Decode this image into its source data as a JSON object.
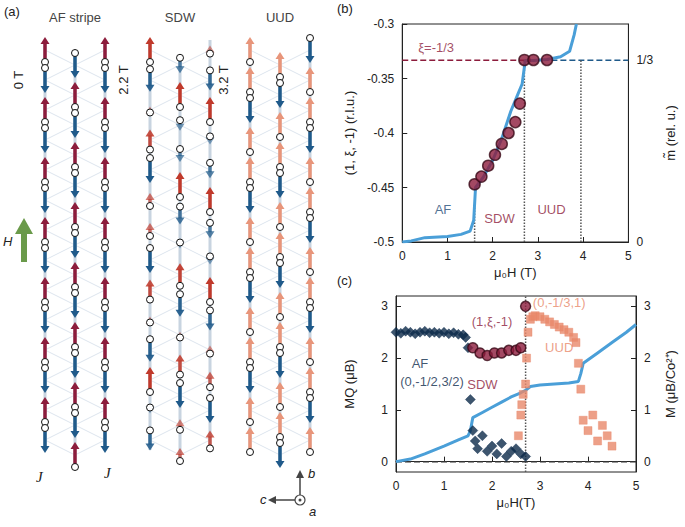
{
  "diagram": {
    "label": "(a)",
    "field": "H",
    "exchange": "J",
    "axes": {
      "up": "b",
      "left": "c",
      "out": "a"
    },
    "columns": [
      {
        "title": "AF stripe",
        "field": "0 T",
        "colors": {
          "up": "#8c1c3c",
          "down": "#1f5a8a"
        },
        "chains": [
          [
            1,
            -1,
            1,
            -1,
            1,
            -1,
            1,
            -1,
            1,
            -1,
            1,
            -1,
            1,
            -1
          ],
          [
            -1,
            1,
            -1,
            1,
            -1,
            1,
            -1,
            1,
            -1,
            1,
            -1,
            1,
            -1,
            1
          ],
          [
            1,
            -1,
            1,
            -1,
            1,
            -1,
            1,
            -1,
            1,
            -1,
            1,
            -1,
            1,
            -1
          ]
        ]
      },
      {
        "title": "SDW",
        "field": "2.2 T",
        "colors": {
          "up": "#c0392b",
          "down": "#1f5a8a"
        },
        "chains": [
          [
            1,
            -0.9,
            0.2,
            0.8,
            -1,
            0.5,
            0.5,
            -1,
            0.8,
            0.2,
            -0.9,
            1,
            -0.1,
            -0.8
          ],
          [
            -0.6,
            1,
            -0.4,
            -0.5,
            1,
            -0.7,
            -0.2,
            0.9,
            -0.9,
            0.1,
            0.8,
            -1,
            0.4,
            0.5
          ],
          [
            0.3,
            -0.8,
            1,
            -0.3,
            -0.6,
            1,
            -0.6,
            -0.3,
            1,
            -0.8,
            0.3,
            0.6,
            -1,
            0.7
          ]
        ]
      },
      {
        "title": "UUD",
        "field": "3.2 T",
        "colors": {
          "up": "#e8957a",
          "down": "#1f5a8a"
        },
        "chains": [
          [
            1,
            1,
            -1,
            1,
            1,
            -1,
            1,
            1,
            -1,
            1,
            1,
            -1,
            1,
            1
          ],
          [
            1,
            -1,
            1,
            1,
            -1,
            1,
            1,
            -1,
            1,
            1,
            -1,
            1,
            1,
            -1
          ],
          [
            -1,
            1,
            1,
            -1,
            1,
            1,
            -1,
            1,
            1,
            -1,
            1,
            1,
            -1,
            1
          ]
        ]
      }
    ]
  },
  "chart_data": [
    {
      "label": "(b)",
      "type": "scatter",
      "x_label": "μ₀H (T)",
      "y_label": "(1, ξ, -1) (r.l.u.)",
      "y2_label": "m̃ (rel. u.)",
      "xlim": [
        0,
        5
      ],
      "xticks": [
        0,
        1,
        2,
        3,
        4,
        5
      ],
      "ylim": [
        -0.5,
        -0.3
      ],
      "yticks": [
        -0.5,
        -0.45,
        -0.4,
        -0.35,
        -0.3
      ],
      "y2lim": [
        0,
        0.4
      ],
      "y2ticks": [
        0,
        {
          "value": 0.3333,
          "label": "1/3"
        }
      ],
      "grid": false,
      "series": [
        {
          "type": "line",
          "axis": "y2",
          "color": "#4a9fd8",
          "line_style": "solid",
          "x": [
            0,
            0.2,
            0.5,
            1.0,
            1.3,
            1.5,
            1.58,
            1.62,
            1.8,
            2.0,
            2.2,
            2.4,
            2.55,
            2.65,
            2.72,
            2.9,
            3.2,
            3.5,
            3.7,
            3.8,
            3.85
          ],
          "values": [
            0,
            0.002,
            0.008,
            0.01,
            0.014,
            0.02,
            0.04,
            0.1,
            0.12,
            0.15,
            0.19,
            0.24,
            0.27,
            0.29,
            0.333,
            0.333,
            0.335,
            0.34,
            0.35,
            0.38,
            0.4
          ]
        },
        {
          "type": "scatter",
          "marker": "circle",
          "color": "#8c1c3c",
          "x": [
            1.6,
            1.75,
            1.9,
            2.05,
            2.2,
            2.35,
            2.5,
            2.6,
            2.7,
            2.9,
            3.2
          ],
          "values": [
            -0.447,
            -0.44,
            -0.43,
            -0.42,
            -0.41,
            -0.4,
            -0.39,
            -0.373,
            -0.333,
            -0.333,
            -0.333
          ]
        }
      ],
      "reference_lines": [
        {
          "axis": "y",
          "value": -0.3333,
          "from": 0,
          "to": 2.7,
          "color": "#8c1c3c",
          "line_style": "dashed"
        },
        {
          "axis": "y",
          "value": -0.3333,
          "from": 2.7,
          "to": 5,
          "color": "#1f5a8a",
          "line_style": "dashed"
        },
        {
          "axis": "x",
          "value": 1.6,
          "from": -0.5,
          "to": -0.465,
          "color": "#555555",
          "line_style": "dotted"
        },
        {
          "axis": "x",
          "value": 2.7,
          "from": -0.5,
          "to": -0.3333,
          "color": "#555555",
          "line_style": "dotted"
        },
        {
          "axis": "x",
          "value": 3.95,
          "from": -0.5,
          "to": -0.3333,
          "color": "#555555",
          "line_style": "dotted"
        }
      ],
      "annotations": [
        {
          "text": "ξ=-1/3",
          "x": 0.75,
          "y": -0.322,
          "color": "#8c1c3c"
        },
        {
          "text": "AF",
          "x": 0.9,
          "y": -0.47,
          "color": "#1f4e79"
        },
        {
          "text": "SDW",
          "x": 2.15,
          "y": -0.478,
          "color": "#8c1c3c"
        },
        {
          "text": "UUD",
          "x": 3.3,
          "y": -0.47,
          "color": "#8c1c3c"
        }
      ]
    },
    {
      "label": "(c)",
      "type": "scatter",
      "x_label": "μ₀H(T)",
      "y_label": "MQ (μB)",
      "y2_label": "M (μB/Co²⁺)",
      "xlim": [
        0,
        5
      ],
      "xticks": [
        0,
        1,
        2,
        3,
        4,
        5
      ],
      "ylim": [
        -0.2,
        3.2
      ],
      "yticks": [
        0,
        1,
        2,
        3
      ],
      "y2lim": [
        -0.2,
        3.2
      ],
      "y2ticks": [
        0,
        1,
        2,
        3
      ],
      "grid": false,
      "series": [
        {
          "type": "line",
          "axis": "y2",
          "color": "#4a9fd8",
          "line_style": "solid",
          "x": [
            0,
            0.3,
            0.6,
            1.0,
            1.3,
            1.5,
            1.55,
            1.6,
            1.8,
            2.0,
            2.2,
            2.4,
            2.6,
            2.7,
            2.8,
            3.0,
            3.3,
            3.6,
            3.8,
            3.85,
            3.9,
            4.2,
            4.5,
            4.8,
            5.0
          ],
          "values": [
            0,
            0.05,
            0.15,
            0.3,
            0.42,
            0.5,
            0.6,
            0.85,
            0.95,
            1.05,
            1.15,
            1.25,
            1.33,
            1.38,
            1.45,
            1.48,
            1.5,
            1.52,
            1.55,
            1.7,
            1.9,
            2.1,
            2.3,
            2.5,
            2.65
          ]
        },
        {
          "type": "scatter",
          "marker": "diamond",
          "color": "#0d2a4a",
          "x": [
            0,
            0.1,
            0.2,
            0.3,
            0.4,
            0.5,
            0.6,
            0.7,
            0.8,
            0.9,
            1.0,
            1.1,
            1.2,
            1.3,
            1.4,
            1.45,
            1.5,
            1.55,
            1.6,
            1.65,
            1.7,
            1.8,
            1.9,
            2.0,
            2.1,
            2.2,
            2.3,
            2.4,
            2.5,
            2.6,
            2.7
          ],
          "values": [
            2.5,
            2.48,
            2.52,
            2.5,
            2.47,
            2.5,
            2.52,
            2.49,
            2.5,
            2.48,
            2.5,
            2.47,
            2.49,
            2.46,
            2.45,
            2.4,
            2.2,
            1.2,
            0.6,
            0.4,
            0.25,
            0.5,
            0.2,
            0.3,
            0.15,
            0.35,
            0.1,
            0.2,
            0.25,
            0.15,
            0.1
          ]
        },
        {
          "type": "scatter",
          "marker": "circle",
          "color": "#8c1c3c",
          "x": [
            1.6,
            1.75,
            1.9,
            2.05,
            2.2,
            2.35,
            2.5,
            2.6,
            2.7
          ],
          "values": [
            2.2,
            2.1,
            2.05,
            2.1,
            2.1,
            2.15,
            2.15,
            2.2,
            3.0
          ]
        },
        {
          "type": "scatter",
          "marker": "square",
          "color": "#e8886a",
          "x": [
            2.55,
            2.6,
            2.62,
            2.65,
            2.7,
            2.72,
            2.75,
            2.8,
            2.85,
            2.9,
            3.0,
            3.1,
            3.2,
            3.3,
            3.4,
            3.5,
            3.6,
            3.7,
            3.75,
            3.8,
            3.85,
            3.9,
            4.0,
            4.1,
            4.2,
            4.3,
            4.4,
            4.5
          ],
          "values": [
            0.5,
            0.9,
            1.1,
            1.3,
            1.5,
            2.0,
            2.5,
            2.75,
            2.8,
            2.82,
            2.8,
            2.75,
            2.7,
            2.65,
            2.6,
            2.55,
            2.5,
            2.4,
            2.3,
            1.9,
            1.4,
            0.8,
            0.6,
            0.9,
            0.4,
            0.7,
            0.5,
            0.3
          ]
        }
      ],
      "reference_lines": [
        {
          "axis": "y",
          "value": 0,
          "from": 0,
          "to": 5,
          "color": "#333333",
          "line_style": "dashed"
        },
        {
          "axis": "x",
          "value": 2.7,
          "from": -0.2,
          "to": 3.2,
          "color": "#555555",
          "line_style": "dotted"
        }
      ],
      "annotations": [
        {
          "text": "AF",
          "x": 0.5,
          "y": 1.9,
          "color": "#0d2a4a"
        },
        {
          "text": "(0,-1/2,3/2)",
          "x": 0.75,
          "y": 1.55,
          "color": "#0d2a4a"
        },
        {
          "text": "SDW",
          "x": 1.8,
          "y": 1.5,
          "color": "#8c1c3c"
        },
        {
          "text": "(1,ξ,-1)",
          "x": 2.0,
          "y": 2.7,
          "color": "#8c1c3c"
        },
        {
          "text": "(0,-1/3,1)",
          "x": 3.4,
          "y": 3.08,
          "color": "#e8886a"
        },
        {
          "text": "UUD",
          "x": 3.4,
          "y": 2.2,
          "color": "#e8886a"
        }
      ]
    }
  ]
}
